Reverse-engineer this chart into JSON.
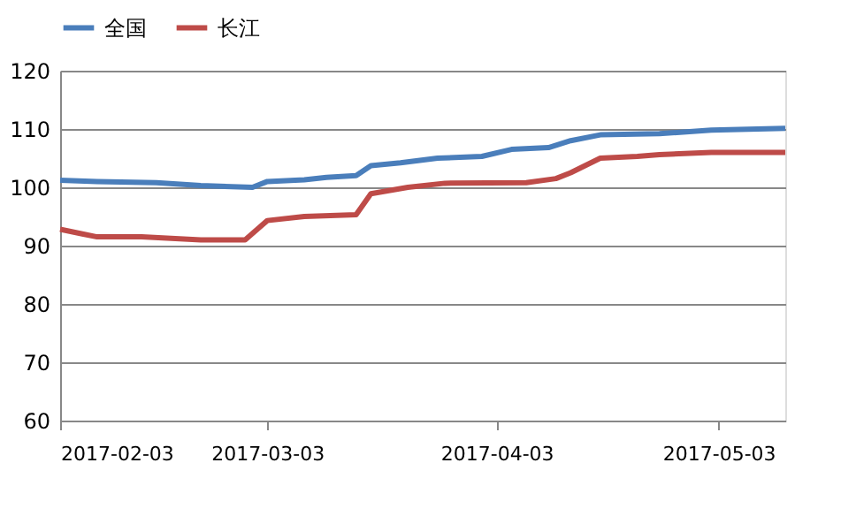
{
  "chart_data": {
    "type": "line",
    "xlim": [
      "2017-02-03",
      "2017-05-12"
    ],
    "xticks": [
      "2017-02-03",
      "2017-03-03",
      "2017-04-03",
      "2017-05-03"
    ],
    "ylim": [
      60,
      120
    ],
    "yticks": [
      60,
      70,
      80,
      90,
      100,
      110,
      120
    ],
    "grid": "y",
    "legend": "top",
    "line_style": "solid",
    "marker": "none",
    "series": [
      {
        "name": "全国",
        "color": "#4a7ebb",
        "x": [
          "2017-02-03",
          "2017-02-08",
          "2017-02-16",
          "2017-02-22",
          "2017-03-01",
          "2017-03-03",
          "2017-03-08",
          "2017-03-11",
          "2017-03-15",
          "2017-03-17",
          "2017-03-21",
          "2017-03-26",
          "2017-04-01",
          "2017-04-05",
          "2017-04-10",
          "2017-04-13",
          "2017-04-17",
          "2017-04-25",
          "2017-05-02",
          "2017-05-12"
        ],
        "values": [
          101.2,
          101,
          100.8,
          100.3,
          100,
          101,
          101.3,
          101.7,
          102,
          103.7,
          104.2,
          105,
          105.3,
          106.5,
          106.8,
          108,
          109,
          109.2,
          109.8,
          110.1
        ]
      },
      {
        "name": "长江",
        "color": "#be4b48",
        "x": [
          "2017-02-03",
          "2017-02-06",
          "2017-02-08",
          "2017-02-14",
          "2017-02-22",
          "2017-02-28",
          "2017-03-03",
          "2017-03-08",
          "2017-03-15",
          "2017-03-17",
          "2017-03-22",
          "2017-03-27",
          "2017-04-07",
          "2017-04-11",
          "2017-04-13",
          "2017-04-17",
          "2017-04-22",
          "2017-04-25",
          "2017-05-02",
          "2017-05-12"
        ],
        "values": [
          92.8,
          92,
          91.5,
          91.5,
          91,
          91,
          94.3,
          95,
          95.3,
          98.9,
          100,
          100.7,
          100.8,
          101.5,
          102.5,
          105,
          105.3,
          105.6,
          106,
          106
        ]
      }
    ]
  }
}
